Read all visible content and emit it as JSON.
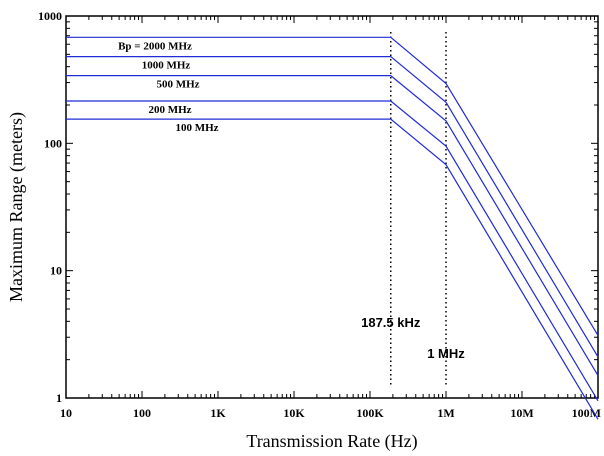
{
  "chart_data": {
    "type": "line",
    "x_scale": "log",
    "y_scale": "log",
    "xlim": [
      10,
      100000000
    ],
    "ylim": [
      1,
      1000
    ],
    "xlabel": "Transmission Rate (Hz)",
    "ylabel": "Maximum Range (meters)",
    "x_ticks": [
      {
        "value": 10,
        "label": "10"
      },
      {
        "value": 100,
        "label": "100"
      },
      {
        "value": 1000,
        "label": "1K"
      },
      {
        "value": 10000,
        "label": "10K"
      },
      {
        "value": 100000,
        "label": "100K"
      },
      {
        "value": 1000000,
        "label": "1M"
      },
      {
        "value": 10000000,
        "label": "10M"
      },
      {
        "value": 100000000,
        "label": "100M"
      }
    ],
    "y_ticks": [
      {
        "value": 1,
        "label": "1"
      },
      {
        "value": 10,
        "label": "10"
      },
      {
        "value": 100,
        "label": "100"
      },
      {
        "value": 1000,
        "label": "1000"
      }
    ],
    "grid": false,
    "line_color": "#1f2bd6",
    "series": [
      {
        "name": "Bp = 2000 MHz",
        "x": [
          10,
          187500,
          1000000,
          100000000
        ],
        "y": [
          680,
          680,
          295,
          3.1
        ]
      },
      {
        "name": "1000 MHz",
        "x": [
          10,
          187500,
          1000000,
          100000000
        ],
        "y": [
          480,
          480,
          210,
          2.1
        ]
      },
      {
        "name": "500 MHz",
        "x": [
          10,
          187500,
          1000000,
          100000000
        ],
        "y": [
          340,
          340,
          150,
          1.5
        ]
      },
      {
        "name": "200 MHz",
        "x": [
          10,
          187500,
          1000000,
          100000000
        ],
        "y": [
          215,
          215,
          95,
          0.95
        ]
      },
      {
        "name": "100 MHz",
        "x": [
          10,
          187500,
          1000000,
          100000000
        ],
        "y": [
          155,
          155,
          68,
          0.68
        ]
      }
    ],
    "vertical_markers": [
      {
        "x": 187500,
        "label": "187.5 kHz"
      },
      {
        "x": 1000000,
        "label": "1 MHz"
      }
    ]
  }
}
